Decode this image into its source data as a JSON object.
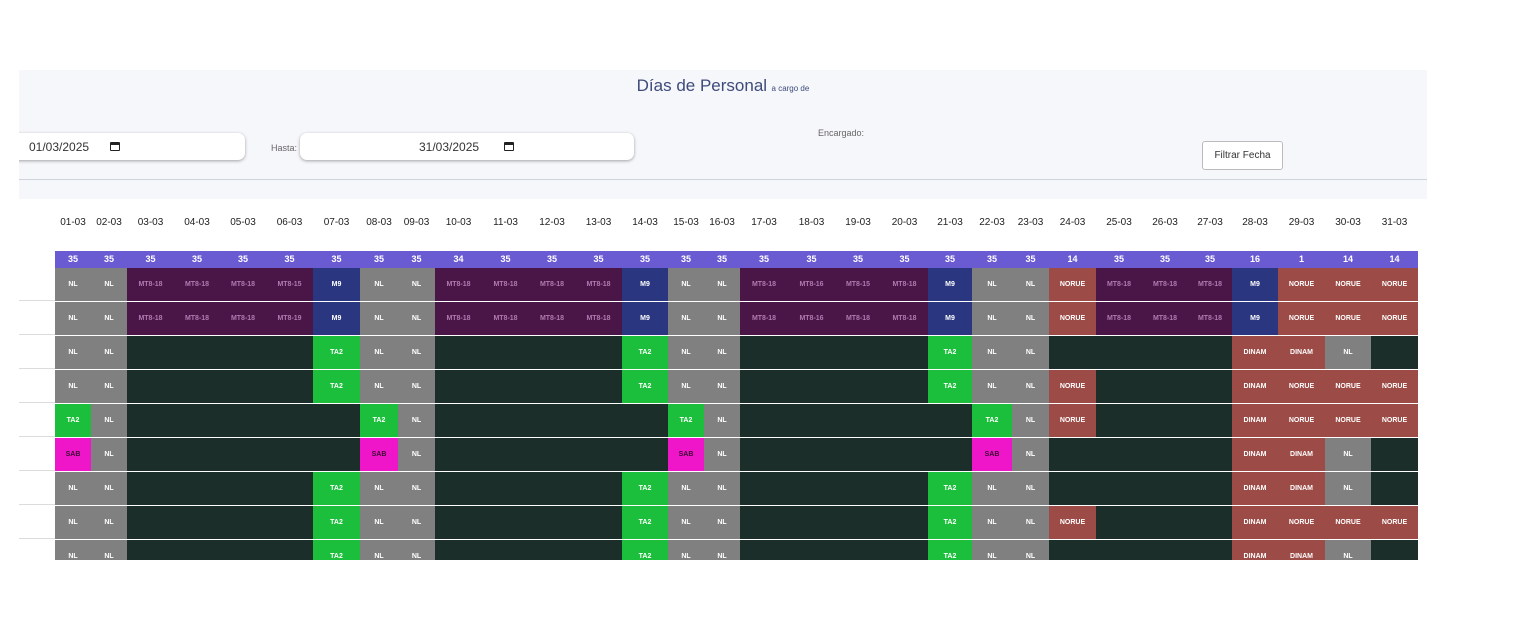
{
  "header": {
    "title": "Días de Personal",
    "subtitle": "a cargo de"
  },
  "filters": {
    "from_value": "01/03/2025",
    "to_label": "Hasta:",
    "to_value": "31/03/2025",
    "manager_label": "Encargado:",
    "filter_button": "Filtrar Fecha"
  },
  "table": {
    "days": [
      "01-03",
      "02-03",
      "03-03",
      "04-03",
      "05-03",
      "06-03",
      "07-03",
      "08-03",
      "09-03",
      "10-03",
      "11-03",
      "12-03",
      "13-03",
      "14-03",
      "15-03",
      "16-03",
      "17-03",
      "18-03",
      "19-03",
      "20-03",
      "21-03",
      "22-03",
      "23-03",
      "24-03",
      "25-03",
      "26-03",
      "27-03",
      "28-03",
      "29-03",
      "30-03",
      "31-03"
    ],
    "totals": [
      "35",
      "35",
      "35",
      "35",
      "35",
      "35",
      "35",
      "35",
      "35",
      "34",
      "35",
      "35",
      "35",
      "35",
      "35",
      "35",
      "35",
      "35",
      "35",
      "35",
      "35",
      "35",
      "35",
      "14",
      "35",
      "35",
      "35",
      "16",
      "1",
      "14",
      "14"
    ],
    "rows": [
      [
        "NL",
        "NL",
        "MT8-18",
        "MT8-18",
        "MT8-18",
        "MT8-15",
        "M9",
        "NL",
        "NL",
        "MT8-18",
        "MT8-18",
        "MT8-18",
        "MT8-18",
        "M9",
        "NL",
        "NL",
        "MT8-18",
        "MT8-16",
        "MT8-15",
        "MT8-18",
        "M9",
        "NL",
        "NL",
        "NORUE",
        "MT8-18",
        "MT8-18",
        "MT8-18",
        "M9",
        "NORUE",
        "NORUE",
        "NORUE"
      ],
      [
        "NL",
        "NL",
        "MT8-18",
        "MT8-18",
        "MT8-18",
        "MT8-19",
        "M9",
        "NL",
        "NL",
        "MT8-18",
        "MT8-18",
        "MT8-18",
        "MT8-18",
        "M9",
        "NL",
        "NL",
        "MT8-18",
        "MT8-16",
        "MT8-18",
        "MT8-18",
        "M9",
        "NL",
        "NL",
        "NORUE",
        "MT8-18",
        "MT8-18",
        "MT8-18",
        "M9",
        "NORUE",
        "NORUE",
        "NORUE"
      ],
      [
        "NL",
        "NL",
        "",
        "",
        "",
        "",
        "TA2",
        "NL",
        "NL",
        "",
        "",
        "",
        "",
        "TA2",
        "NL",
        "NL",
        "",
        "",
        "",
        "",
        "TA2",
        "NL",
        "NL",
        "",
        "",
        "",
        "",
        "DINAM",
        "DINAM",
        "NL",
        ""
      ],
      [
        "NL",
        "NL",
        "",
        "",
        "",
        "",
        "TA2",
        "NL",
        "NL",
        "",
        "",
        "",
        "",
        "TA2",
        "NL",
        "NL",
        "",
        "",
        "",
        "",
        "TA2",
        "NL",
        "NL",
        "NORUE",
        "",
        "",
        "",
        "DINAM",
        "NORUE",
        "NORUE",
        "NORUE"
      ],
      [
        "TA2",
        "NL",
        "",
        "",
        "",
        "",
        "",
        "TA2",
        "NL",
        "",
        "",
        "",
        "",
        "",
        "TA2",
        "NL",
        "",
        "",
        "",
        "",
        "",
        "TA2",
        "NL",
        "NORUE",
        "",
        "",
        "",
        "DINAM",
        "NORUE",
        "NORUE",
        "NORUE"
      ],
      [
        "SAB",
        "NL",
        "",
        "",
        "",
        "",
        "",
        "SAB",
        "NL",
        "",
        "",
        "",
        "",
        "",
        "SAB",
        "NL",
        "",
        "",
        "",
        "",
        "",
        "SAB",
        "NL",
        "",
        "",
        "",
        "",
        "DINAM",
        "DINAM",
        "NL",
        ""
      ],
      [
        "NL",
        "NL",
        "",
        "",
        "",
        "",
        "TA2",
        "NL",
        "NL",
        "",
        "",
        "",
        "",
        "TA2",
        "NL",
        "NL",
        "",
        "",
        "",
        "",
        "TA2",
        "NL",
        "NL",
        "",
        "",
        "",
        "",
        "DINAM",
        "DINAM",
        "NL",
        ""
      ],
      [
        "NL",
        "NL",
        "",
        "",
        "",
        "",
        "TA2",
        "NL",
        "NL",
        "",
        "",
        "",
        "",
        "TA2",
        "NL",
        "NL",
        "",
        "",
        "",
        "",
        "TA2",
        "NL",
        "NL",
        "NORUE",
        "",
        "",
        "",
        "DINAM",
        "NORUE",
        "NORUE",
        "NORUE"
      ],
      [
        "NL",
        "NL",
        "",
        "",
        "",
        "",
        "TA2",
        "NL",
        "NL",
        "",
        "",
        "",
        "",
        "TA2",
        "NL",
        "NL",
        "",
        "",
        "",
        "",
        "TA2",
        "NL",
        "NL",
        "",
        "",
        "",
        "",
        "DINAM",
        "DINAM",
        "NL",
        ""
      ]
    ]
  },
  "colors": {
    "title": "#3e4a7a",
    "totals_bar": "#6b5bd2",
    "NL": "#808080",
    "MT": "#4a1648",
    "M9": "#2a3680",
    "TA2": "#1bbf3c",
    "SAB": "#ee16c8",
    "NORUE": "#9c4b46",
    "DINAM": "#9c4b46",
    "empty": "#1b2e2a"
  },
  "icons": {
    "date_picker": "calendar-icon"
  }
}
